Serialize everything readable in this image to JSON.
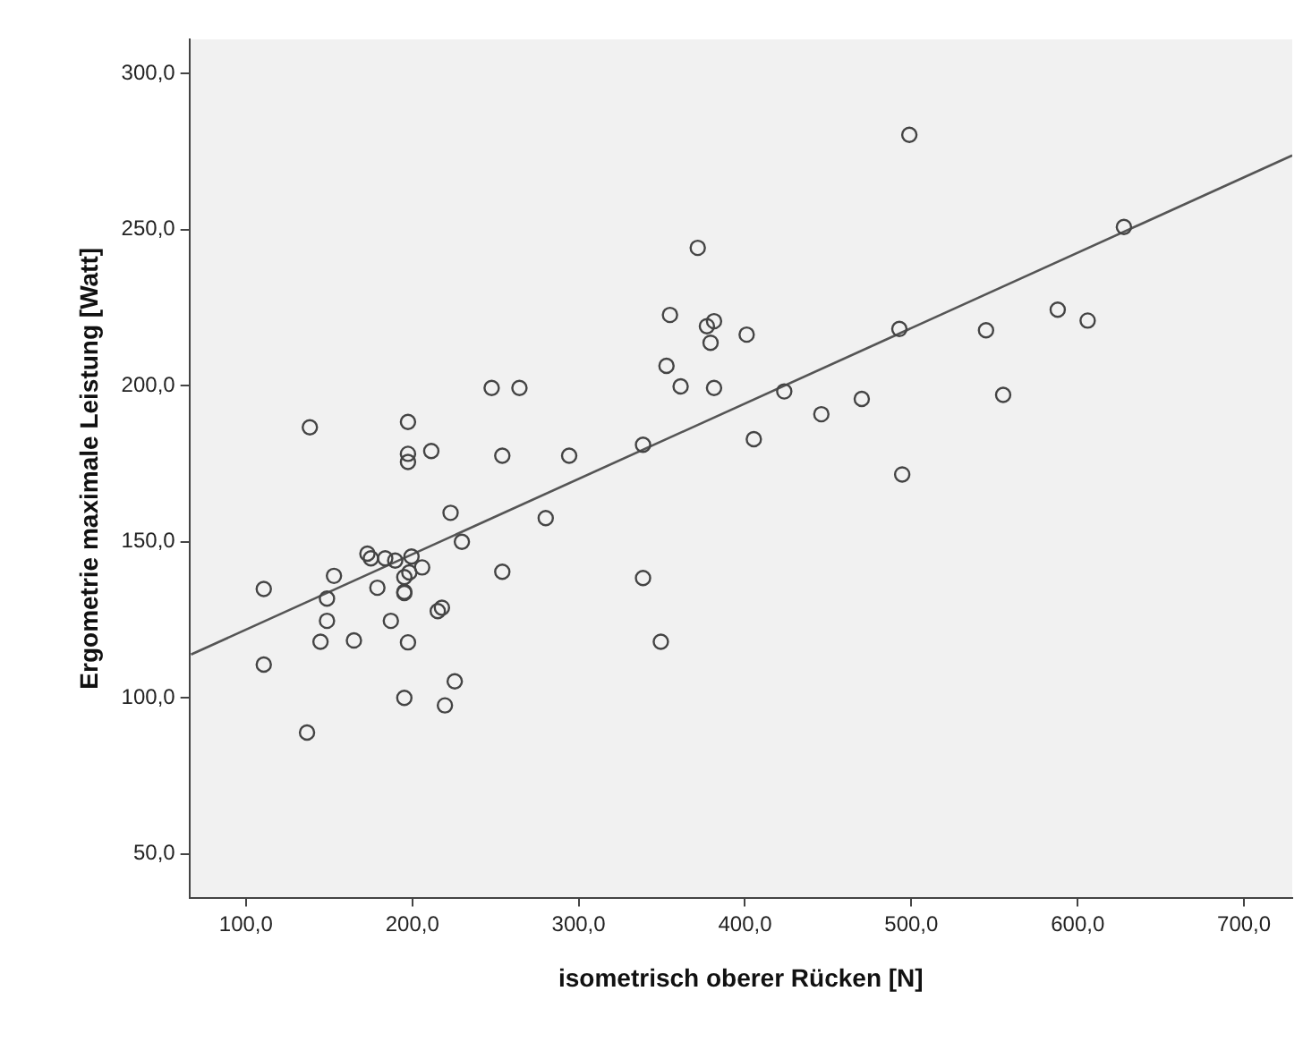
{
  "chart_data": {
    "type": "scatter",
    "xlabel": "isometrisch oberer Rücken [N]",
    "ylabel": "Ergometrie maximale Leistung [Watt]",
    "xlim": [
      66,
      729
    ],
    "ylim": [
      36,
      311
    ],
    "xticks": [
      {
        "value": 100,
        "label": "100,0"
      },
      {
        "value": 200,
        "label": "200,0"
      },
      {
        "value": 300,
        "label": "300,0"
      },
      {
        "value": 400,
        "label": "400,0"
      },
      {
        "value": 500,
        "label": "500,0"
      },
      {
        "value": 600,
        "label": "600,0"
      },
      {
        "value": 700,
        "label": "700,0"
      }
    ],
    "yticks": [
      {
        "value": 50,
        "label": "50,0"
      },
      {
        "value": 100,
        "label": "100,0"
      },
      {
        "value": 150,
        "label": "150,0"
      },
      {
        "value": 200,
        "label": "200,0"
      },
      {
        "value": 250,
        "label": "250,0"
      },
      {
        "value": 300,
        "label": "300,0"
      }
    ],
    "grid": false,
    "legend": false,
    "marker": "circle",
    "series": [
      {
        "color": "#444444",
        "x": [
          498.8,
          627.8,
          371.6,
          354.9,
          377.1,
          381.4,
          379.3,
          401.0,
          492.8,
          544.9,
          588.0,
          606.0,
          352.8,
          361.3,
          381.4,
          247.7,
          264.4,
          423.6,
          470.2,
          555.2,
          445.9,
          405.3,
          494.5,
          338.7,
          138.4,
          197.4,
          197.4,
          197.4,
          211.4,
          254.1,
          294.3,
          223.0,
          280.2,
          229.8,
          173.0,
          175.1,
          183.7,
          189.7,
          199.5,
          205.9,
          198.2,
          195.2,
          254.1,
          152.9,
          110.7,
          179.0,
          195.2,
          195.2,
          148.7,
          338.7,
          215.3,
          217.8,
          148.7,
          187.1,
          144.8,
          164.9,
          197.4,
          349.4,
          110.7,
          225.5,
          195.2,
          219.6,
          136.7
        ],
        "values": [
          280.4,
          250.9,
          244.2,
          222.7,
          219.1,
          220.7,
          213.8,
          216.4,
          218.2,
          217.8,
          224.4,
          220.9,
          206.4,
          199.8,
          199.3,
          199.3,
          199.3,
          198.2,
          195.8,
          197.1,
          190.9,
          182.9,
          171.6,
          181.1,
          186.7,
          188.4,
          178.2,
          175.6,
          179.1,
          177.6,
          177.6,
          159.3,
          157.6,
          150.0,
          146.2,
          144.7,
          144.7,
          144.0,
          145.3,
          141.8,
          140.2,
          138.7,
          140.4,
          139.1,
          134.9,
          135.3,
          134.0,
          133.6,
          131.8,
          138.4,
          127.8,
          128.9,
          124.7,
          124.7,
          118.0,
          118.4,
          117.8,
          118.0,
          110.7,
          105.3,
          100.0,
          97.6,
          88.9
        ]
      },
      {
        "type": "line",
        "color": "#555555",
        "marker": "none",
        "x": [
          67,
          729
        ],
        "values": [
          113.9,
          273.8
        ]
      }
    ]
  }
}
